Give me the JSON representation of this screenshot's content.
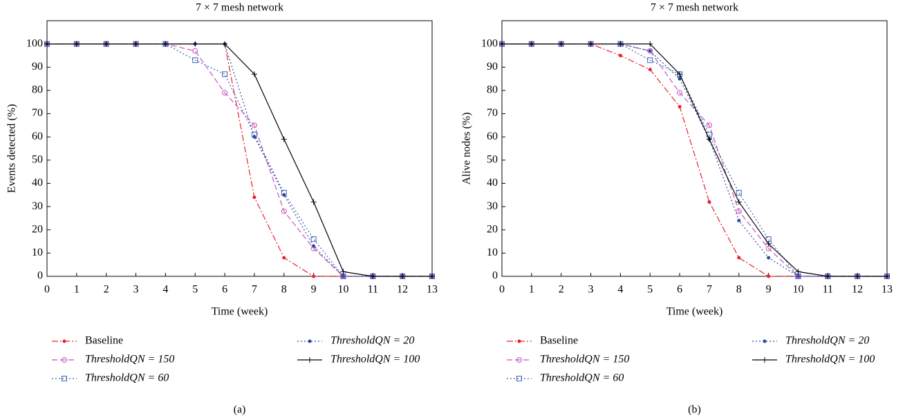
{
  "chart_data": [
    {
      "type": "line",
      "title": "7 × 7 mesh network",
      "xlabel": "Time (week)",
      "ylabel": "Events detected (%)",
      "panel": "(a)",
      "x": [
        0,
        1,
        2,
        3,
        4,
        5,
        6,
        7,
        8,
        9,
        10,
        11,
        12,
        13
      ],
      "xlim": [
        0,
        13
      ],
      "xticks": [
        0,
        1,
        2,
        3,
        4,
        5,
        6,
        7,
        8,
        9,
        10,
        11,
        12,
        13
      ],
      "ylim": [
        0,
        110
      ],
      "yticks": [
        0,
        10,
        20,
        30,
        40,
        50,
        60,
        70,
        80,
        90,
        100
      ],
      "grid": false,
      "legend": "bottom",
      "series": [
        {
          "name": "Baseline",
          "color": "#e8202a",
          "dash": "dashdot",
          "marker": "dot",
          "values": [
            100,
            100,
            100,
            100,
            100,
            100,
            100,
            34,
            8,
            0,
            0,
            0,
            0,
            0
          ]
        },
        {
          "name": "ThresholdQN = 150",
          "color": "#c850c0",
          "dash": "dashed",
          "marker": "circle",
          "values": [
            100,
            100,
            100,
            100,
            100,
            97,
            79,
            65,
            28,
            12,
            0,
            0,
            0,
            0
          ]
        },
        {
          "name": "ThresholdQN = 60",
          "color": "#3a5fb0",
          "dash": "dotted",
          "marker": "square",
          "values": [
            100,
            100,
            100,
            100,
            100,
            93,
            87,
            61,
            36,
            16,
            0,
            0,
            0,
            0
          ]
        },
        {
          "name": "ThresholdQN = 20",
          "color": "#2a4aa0",
          "dash": "dotted",
          "marker": "dot",
          "values": [
            100,
            100,
            100,
            100,
            100,
            100,
            100,
            60,
            35,
            13,
            0,
            0,
            0,
            0
          ]
        },
        {
          "name": "ThresholdQN = 100",
          "color": "#000000",
          "dash": "solid",
          "marker": "plus",
          "values": [
            100,
            100,
            100,
            100,
            100,
            100,
            100,
            87,
            59,
            32,
            2,
            0,
            0,
            0
          ]
        }
      ]
    },
    {
      "type": "line",
      "title": "7 × 7 mesh network",
      "xlabel": "Time (week)",
      "ylabel": "Alive nodes (%)",
      "panel": "(b)",
      "x": [
        0,
        1,
        2,
        3,
        4,
        5,
        6,
        7,
        8,
        9,
        10,
        11,
        12,
        13
      ],
      "xlim": [
        0,
        13
      ],
      "xticks": [
        0,
        1,
        2,
        3,
        4,
        5,
        6,
        7,
        8,
        9,
        10,
        11,
        12,
        13
      ],
      "ylim": [
        0,
        110
      ],
      "yticks": [
        0,
        10,
        20,
        30,
        40,
        50,
        60,
        70,
        80,
        90,
        100
      ],
      "grid": false,
      "legend": "bottom",
      "series": [
        {
          "name": "Baseline",
          "color": "#e8202a",
          "dash": "dashdot",
          "marker": "dot",
          "values": [
            100,
            100,
            100,
            100,
            95,
            89,
            73,
            32,
            8,
            0,
            0,
            0,
            0,
            0
          ]
        },
        {
          "name": "ThresholdQN = 150",
          "color": "#c850c0",
          "dash": "dashed",
          "marker": "circle",
          "values": [
            100,
            100,
            100,
            100,
            100,
            97,
            79,
            65,
            28,
            12,
            0,
            0,
            0,
            0
          ]
        },
        {
          "name": "ThresholdQN = 60",
          "color": "#3a5fb0",
          "dash": "dotted",
          "marker": "square",
          "values": [
            100,
            100,
            100,
            100,
            100,
            93,
            87,
            61,
            36,
            16,
            0,
            0,
            0,
            0
          ]
        },
        {
          "name": "ThresholdQN = 20",
          "color": "#2a4aa0",
          "dash": "dotted",
          "marker": "dot",
          "values": [
            100,
            100,
            100,
            100,
            100,
            97,
            85,
            59,
            24,
            8,
            0,
            0,
            0,
            0
          ]
        },
        {
          "name": "ThresholdQN = 100",
          "color": "#000000",
          "dash": "solid",
          "marker": "plus",
          "values": [
            100,
            100,
            100,
            100,
            100,
            100,
            87,
            59,
            32,
            14,
            2,
            0,
            0,
            0
          ]
        }
      ]
    }
  ]
}
